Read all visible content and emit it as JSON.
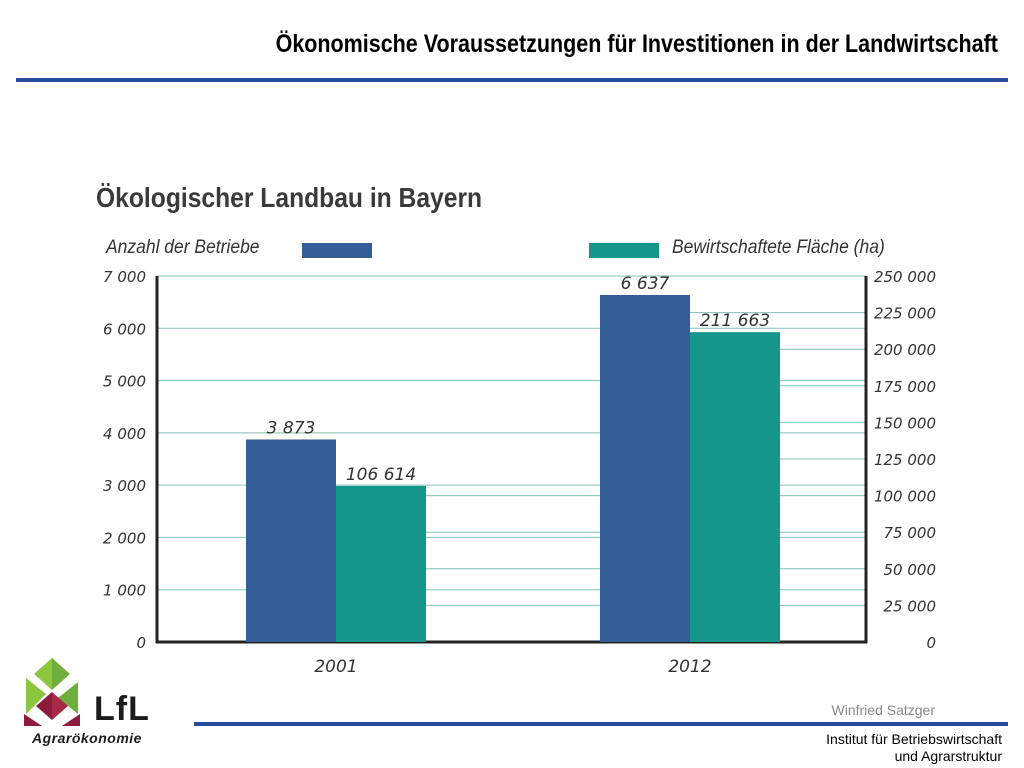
{
  "slide": {
    "title": "Ökonomische Voraussetzungen für Investitionen in der Landwirtschaft",
    "author": "Winfried Satzger",
    "institute_line1": "Institut für Betriebswirtschaft",
    "institute_line2": "und Agrarstruktur"
  },
  "logo": {
    "name": "LfL",
    "subtitle": "Agrarökonomie"
  },
  "colors": {
    "rule": "#2c4a9a",
    "betriebe": "#345c96",
    "flaeche": "#14968a",
    "gridline": "#7fc3b6"
  },
  "chart_data": {
    "type": "bar",
    "title": "Ökologischer Landbau in Bayern",
    "categories": [
      "2001",
      "2012"
    ],
    "series": [
      {
        "name": "Anzahl der Betriebe",
        "axis": "left",
        "values": [
          3873,
          6637
        ],
        "labels": [
          "3 873",
          "6 637"
        ]
      },
      {
        "name": "Bewirtschaftete Fläche (ha)",
        "axis": "right",
        "values": [
          106614,
          211663
        ],
        "labels": [
          "106 614",
          "211 663"
        ]
      }
    ],
    "left_axis": {
      "ylim": [
        0,
        7000
      ],
      "ticks": [
        0,
        1000,
        2000,
        3000,
        4000,
        5000,
        6000,
        7000
      ],
      "tick_labels": [
        "0",
        "1 000",
        "2 000",
        "3 000",
        "4 000",
        "5 000",
        "6 000",
        "7 000"
      ]
    },
    "right_axis": {
      "ylim": [
        0,
        250000
      ],
      "ticks": [
        0,
        25000,
        50000,
        75000,
        100000,
        125000,
        150000,
        175000,
        200000,
        225000,
        250000
      ],
      "tick_labels": [
        "0",
        "25 000",
        "50 000",
        "75 000",
        "100 000",
        "125 000",
        "150 000",
        "175 000",
        "200 000",
        "225 000",
        "250 000"
      ]
    },
    "legend_position": "top",
    "grid": true
  }
}
